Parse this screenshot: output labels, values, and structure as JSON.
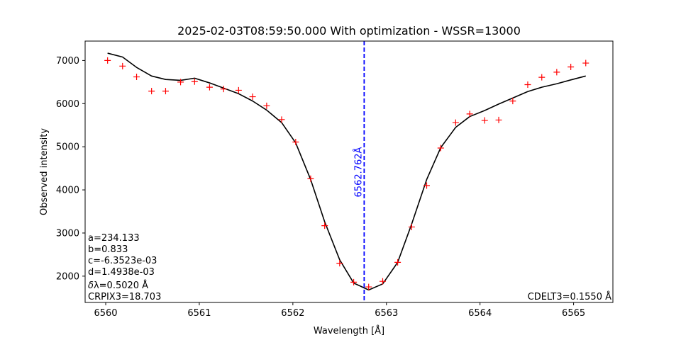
{
  "chart_data": {
    "type": "line",
    "title": "2025-02-03T08:59:50.000 With optimization - WSSR=13000",
    "xlabel": "Wavelength [Å]",
    "ylabel": "Observed intensity",
    "xlim": [
      6559.78,
      6565.42
    ],
    "ylim": [
      1390,
      7450
    ],
    "xticks": [
      6560,
      6561,
      6562,
      6563,
      6564,
      6565
    ],
    "yticks": [
      2000,
      3000,
      4000,
      5000,
      6000,
      7000
    ],
    "grid": false,
    "series": [
      {
        "kind": "observed-markers",
        "marker": "+",
        "color": "#ff0000",
        "x": [
          6560.02,
          6560.18,
          6560.33,
          6560.49,
          6560.64,
          6560.8,
          6560.95,
          6561.11,
          6561.26,
          6561.42,
          6561.57,
          6561.72,
          6561.88,
          6562.03,
          6562.19,
          6562.34,
          6562.5,
          6562.65,
          6562.81,
          6562.96,
          6563.12,
          6563.27,
          6563.43,
          6563.58,
          6563.74,
          6563.89,
          6564.05,
          6564.2,
          6564.35,
          6564.51,
          6564.66,
          6564.82,
          6564.97,
          6565.13
        ],
        "y": [
          7000,
          6870,
          6620,
          6290,
          6290,
          6500,
          6510,
          6380,
          6340,
          6310,
          6160,
          5950,
          5630,
          5110,
          4260,
          3170,
          2300,
          1860,
          1750,
          1880,
          2320,
          3140,
          4100,
          4970,
          5560,
          5760,
          5610,
          5620,
          6060,
          6440,
          6610,
          6730,
          6850,
          6940
        ]
      },
      {
        "kind": "fit-line",
        "color": "#000000",
        "x": [
          6560.02,
          6560.18,
          6560.33,
          6560.49,
          6560.64,
          6560.8,
          6560.95,
          6561.11,
          6561.26,
          6561.42,
          6561.57,
          6561.72,
          6561.88,
          6562.03,
          6562.19,
          6562.34,
          6562.5,
          6562.65,
          6562.81,
          6562.96,
          6563.12,
          6563.27,
          6563.43,
          6563.58,
          6563.74,
          6563.89,
          6564.05,
          6564.2,
          6564.35,
          6564.51,
          6564.66,
          6564.82,
          6564.97,
          6565.13
        ],
        "y": [
          7170,
          7080,
          6840,
          6640,
          6560,
          6540,
          6590,
          6480,
          6360,
          6230,
          6060,
          5850,
          5560,
          5090,
          4240,
          3260,
          2380,
          1840,
          1680,
          1820,
          2320,
          3210,
          4240,
          4980,
          5450,
          5700,
          5840,
          5990,
          6130,
          6280,
          6380,
          6460,
          6550,
          6640
        ]
      }
    ],
    "vline": {
      "x": 6562.762,
      "label": "6562.762Å",
      "color": "#0000ff",
      "style": "dashed"
    },
    "annotations_left": [
      "a=234.133",
      "b=0.833",
      "c=-6.3523e-03",
      "d=1.4938e-03",
      "δλ=0.5020 Å",
      "CRPIX3=18.703"
    ],
    "annotation_right": "CDELT3=0.1550 Å"
  }
}
